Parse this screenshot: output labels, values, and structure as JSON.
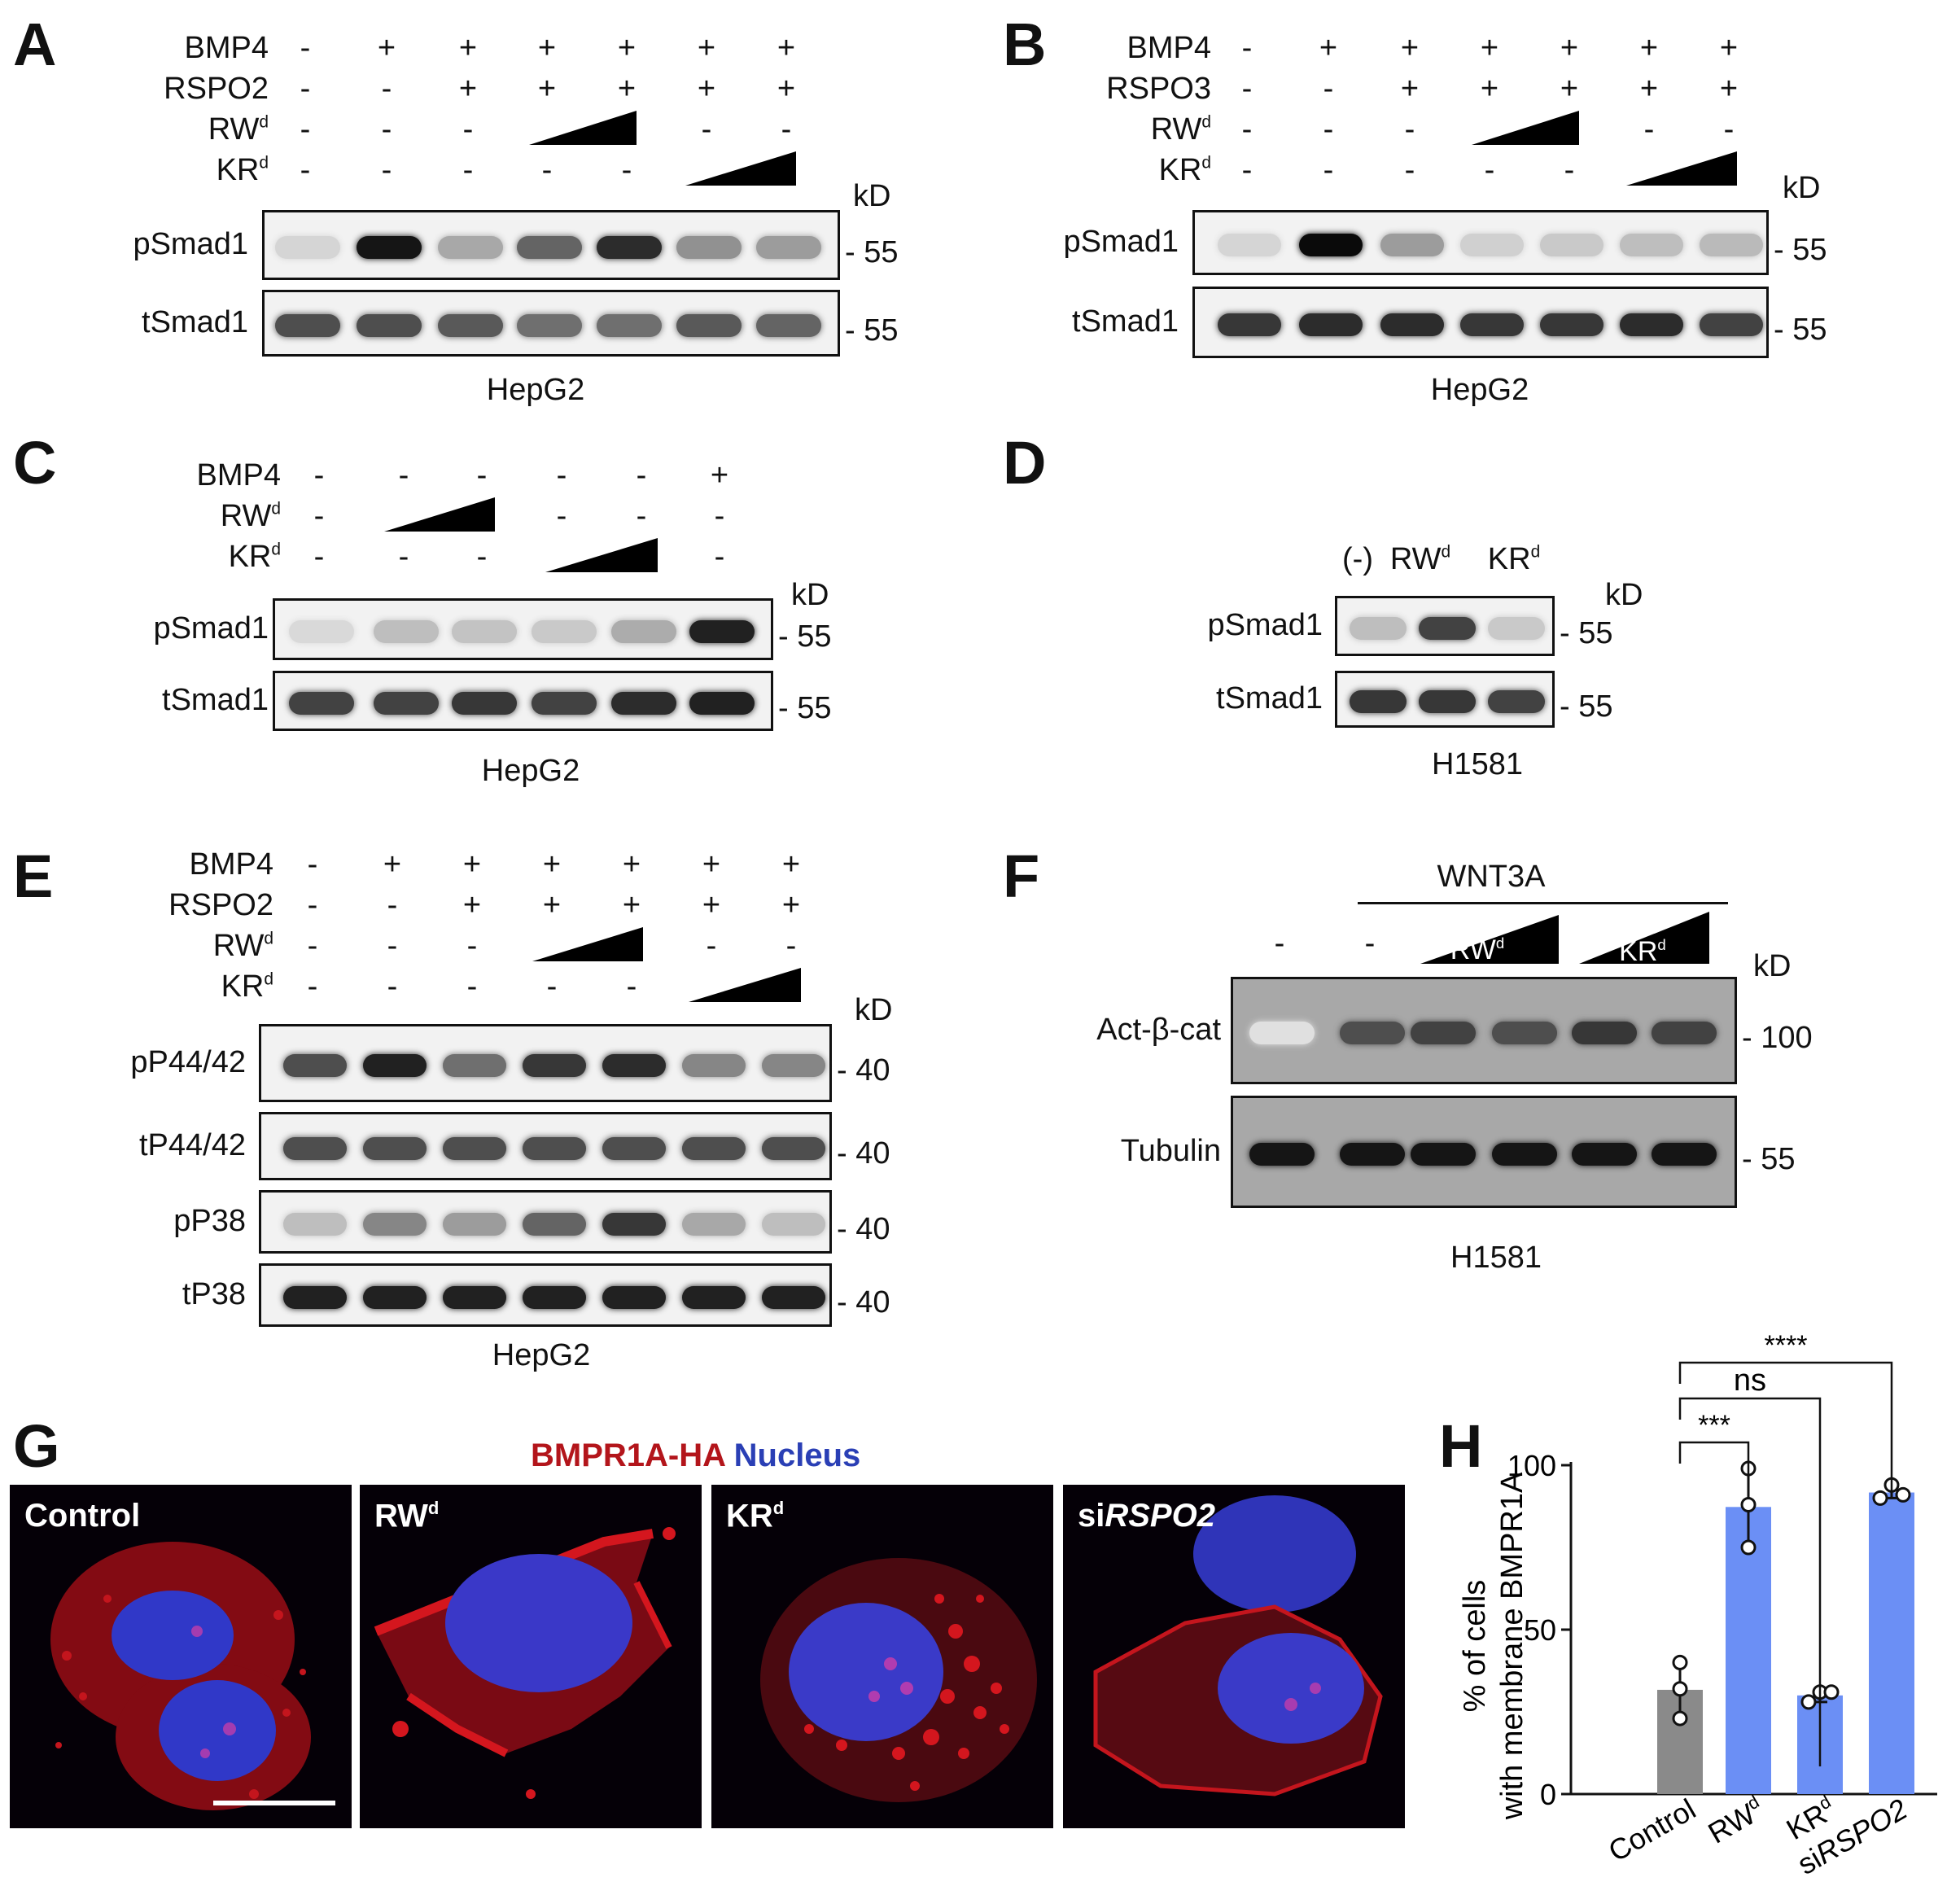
{
  "panels": {
    "A": {
      "label": "A",
      "rows": [
        {
          "name": "BMP4",
          "values": [
            "-",
            "+",
            "+",
            "+",
            "+",
            "+",
            "+"
          ]
        },
        {
          "name": "RSPO2",
          "values": [
            "-",
            "-",
            "+",
            "+",
            "+",
            "+",
            "+"
          ]
        },
        {
          "name": "RW",
          "sup": "d",
          "values": [
            "-",
            "-",
            "-",
            "",
            "",
            "-",
            "-"
          ]
        },
        {
          "name": "KR",
          "sup": "d",
          "values": [
            "-",
            "-",
            "-",
            "-",
            "-",
            "",
            ""
          ]
        }
      ],
      "kd_label": "kD",
      "blots": [
        {
          "name": "pSmad1",
          "kd": "- 55"
        },
        {
          "name": "tSmad1",
          "kd": "- 55"
        }
      ],
      "cell_line": "HepG2"
    },
    "B": {
      "label": "B",
      "rows": [
        {
          "name": "BMP4",
          "values": [
            "-",
            "+",
            "+",
            "+",
            "+",
            "+",
            "+"
          ]
        },
        {
          "name": "RSPO3",
          "values": [
            "-",
            "-",
            "+",
            "+",
            "+",
            "+",
            "+"
          ]
        },
        {
          "name": "RW",
          "sup": "d",
          "values": [
            "-",
            "-",
            "-",
            "",
            "",
            "-",
            "-"
          ]
        },
        {
          "name": "KR",
          "sup": "d",
          "values": [
            "-",
            "-",
            "-",
            "-",
            "-",
            "",
            ""
          ]
        }
      ],
      "kd_label": "kD",
      "blots": [
        {
          "name": "pSmad1",
          "kd": "- 55"
        },
        {
          "name": "tSmad1",
          "kd": "- 55"
        }
      ],
      "cell_line": "HepG2"
    },
    "C": {
      "label": "C",
      "rows": [
        {
          "name": "BMP4",
          "values": [
            "-",
            "-",
            "-",
            "-",
            "-",
            "+"
          ]
        },
        {
          "name": "RW",
          "sup": "d",
          "values": [
            "-",
            "",
            "",
            "-",
            "-",
            "-"
          ]
        },
        {
          "name": "KR",
          "sup": "d",
          "values": [
            "-",
            "-",
            "-",
            "",
            "",
            "-"
          ]
        }
      ],
      "kd_label": "kD",
      "blots": [
        {
          "name": "pSmad1",
          "kd": "- 55"
        },
        {
          "name": "tSmad1",
          "kd": "- 55"
        }
      ],
      "cell_line": "HepG2"
    },
    "D": {
      "label": "D",
      "lanes": [
        {
          "text": "(-)",
          "sup": ""
        },
        {
          "text": "RW",
          "sup": "d"
        },
        {
          "text": "KR",
          "sup": "d"
        }
      ],
      "kd_label": "kD",
      "blots": [
        {
          "name": "pSmad1",
          "kd": "- 55"
        },
        {
          "name": "tSmad1",
          "kd": "- 55"
        }
      ],
      "cell_line": "H1581"
    },
    "E": {
      "label": "E",
      "rows": [
        {
          "name": "BMP4",
          "values": [
            "-",
            "+",
            "+",
            "+",
            "+",
            "+",
            "+"
          ]
        },
        {
          "name": "RSPO2",
          "values": [
            "-",
            "-",
            "+",
            "+",
            "+",
            "+",
            "+"
          ]
        },
        {
          "name": "RW",
          "sup": "d",
          "values": [
            "-",
            "-",
            "-",
            "",
            "",
            "-",
            "-"
          ]
        },
        {
          "name": "KR",
          "sup": "d",
          "values": [
            "-",
            "-",
            "-",
            "-",
            "-",
            "",
            ""
          ]
        }
      ],
      "kd_label": "kD",
      "blots": [
        {
          "name": "pP44/42",
          "kd": "- 40"
        },
        {
          "name": "tP44/42",
          "kd": "- 40"
        },
        {
          "name": "pP38",
          "kd": "- 40"
        },
        {
          "name": "tP38",
          "kd": "- 40"
        }
      ],
      "cell_line": "HepG2"
    },
    "F": {
      "label": "F",
      "treatment": "WNT3A",
      "lanes": [
        "-",
        "-"
      ],
      "wedge_labels": [
        {
          "text": "RW",
          "sup": "d"
        },
        {
          "text": "KR",
          "sup": "d"
        }
      ],
      "kd_label": "kD",
      "blots": [
        {
          "name": "Act-β-cat",
          "kd": "- 100"
        },
        {
          "name": "Tubulin",
          "kd": "- 55"
        }
      ],
      "cell_line": "H1581"
    },
    "G": {
      "label": "G",
      "legend_red": "BMPR1A-HA",
      "legend_blue": "Nucleus",
      "images": [
        {
          "pre": "Control",
          "sup": "",
          "ital": ""
        },
        {
          "pre": "RW",
          "sup": "d",
          "ital": ""
        },
        {
          "pre": "KR",
          "sup": "d",
          "ital": ""
        },
        {
          "pre": "si",
          "sup": "",
          "ital": "RSPO2"
        }
      ]
    },
    "H": {
      "label": "H"
    }
  },
  "chart_data": {
    "type": "bar",
    "categories": [
      "Control",
      "RWd",
      "KRd",
      "siRSPO2"
    ],
    "values": [
      31.7,
      87.3,
      30.0,
      91.7
    ],
    "points": [
      [
        40,
        32,
        23
      ],
      [
        99,
        88,
        75
      ],
      [
        28,
        31,
        31
      ],
      [
        90,
        94,
        91
      ]
    ],
    "ylabel": "% of cells with membrane BMPR1A",
    "ylim": [
      0,
      100
    ],
    "yticks": [
      0,
      50,
      100
    ],
    "colors": [
      "#8a8a8a",
      "#6b8ff5",
      "#6b8ff5",
      "#6b8ff5"
    ],
    "significance": [
      {
        "from": "Control",
        "to": "RWd",
        "label": "***"
      },
      {
        "from": "Control",
        "to": "KRd",
        "label": "ns"
      },
      {
        "from": "Control",
        "to": "siRSPO2",
        "label": "****"
      }
    ]
  }
}
